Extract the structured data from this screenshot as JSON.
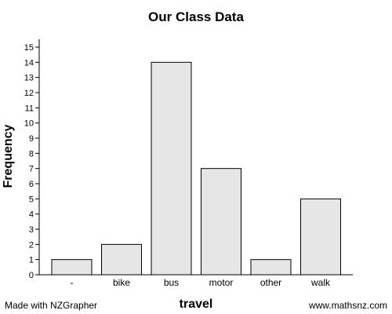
{
  "chart_data": {
    "type": "bar",
    "title": "Our Class Data",
    "xlabel": "travel",
    "ylabel": "Frequency",
    "categories": [
      "-",
      "bike",
      "bus",
      "motor",
      "other",
      "walk"
    ],
    "values": [
      1,
      2,
      14,
      7,
      1,
      5
    ],
    "ylim": [
      0,
      15
    ],
    "yticks": [
      0,
      1,
      2,
      3,
      4,
      5,
      6,
      7,
      8,
      9,
      10,
      11,
      12,
      13,
      14,
      15
    ],
    "grid": false,
    "bar_color": "#e6e6e6"
  },
  "footer": {
    "left": "Made with NZGrapher",
    "right": "www.mathsnz.com"
  }
}
